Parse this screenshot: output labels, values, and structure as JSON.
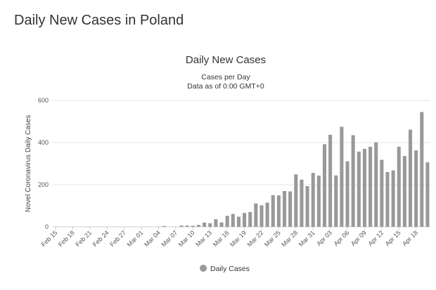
{
  "page": {
    "heading": "Daily New Cases in Poland"
  },
  "chart_data": {
    "type": "bar",
    "title": "Daily New Cases",
    "subtitle": "Cases per Day",
    "subtitle2": "Data as of 0:00 GMT+0",
    "ylabel": "Novel Coronavirus Daily Cases",
    "xlabel": "",
    "ylim": [
      0,
      600
    ],
    "yticks": [
      0,
      200,
      400,
      600
    ],
    "grid": true,
    "legend_position": "bottom",
    "bar_color": "#999999",
    "categories": [
      "Feb 15",
      "Feb 16",
      "Feb 17",
      "Feb 18",
      "Feb 19",
      "Feb 20",
      "Feb 21",
      "Feb 22",
      "Feb 23",
      "Feb 24",
      "Feb 25",
      "Feb 26",
      "Feb 27",
      "Feb 28",
      "Feb 29",
      "Mar 01",
      "Mar 02",
      "Mar 03",
      "Mar 04",
      "Mar 05",
      "Mar 06",
      "Mar 07",
      "Mar 08",
      "Mar 09",
      "Mar 10",
      "Mar 11",
      "Mar 12",
      "Mar 13",
      "Mar 14",
      "Mar 15",
      "Mar 16",
      "Mar 17",
      "Mar 18",
      "Mar 19",
      "Mar 20",
      "Mar 21",
      "Mar 22",
      "Mar 23",
      "Mar 24",
      "Mar 25",
      "Mar 26",
      "Mar 27",
      "Mar 28",
      "Mar 29",
      "Mar 30",
      "Mar 31",
      "Apr 01",
      "Apr 02",
      "Apr 03",
      "Apr 04",
      "Apr 05",
      "Apr 06",
      "Apr 07",
      "Apr 08",
      "Apr 09",
      "Apr 10",
      "Apr 11",
      "Apr 12",
      "Apr 13",
      "Apr 14",
      "Apr 15",
      "Apr 16",
      "Apr 17",
      "Apr 18",
      "Apr 19",
      "Apr 20"
    ],
    "xtick_labels": [
      "Feb 15",
      "Feb 18",
      "Feb 21",
      "Feb 24",
      "Feb 27",
      "Mar 01",
      "Mar 04",
      "Mar 07",
      "Mar 10",
      "Mar 13",
      "Mar 16",
      "Mar 19",
      "Mar 22",
      "Mar 25",
      "Mar 28",
      "Mar 31",
      "Apr 03",
      "Apr 06",
      "Apr 09",
      "Apr 12",
      "Apr 15",
      "Apr 18"
    ],
    "series": [
      {
        "name": "Daily Cases",
        "values": [
          0,
          0,
          0,
          0,
          0,
          0,
          0,
          0,
          0,
          0,
          0,
          0,
          0,
          0,
          0,
          0,
          0,
          0,
          1,
          4,
          0,
          0,
          6,
          6,
          5,
          9,
          20,
          17,
          36,
          21,
          52,
          61,
          48,
          66,
          70,
          111,
          102,
          115,
          150,
          149,
          170,
          168,
          249,
          224,
          193,
          256,
          243,
          392,
          437,
          244,
          475,
          311,
          435,
          357,
          370,
          380,
          401,
          318,
          260,
          268,
          380,
          336,
          461,
          363,
          545,
          306
        ]
      }
    ]
  }
}
